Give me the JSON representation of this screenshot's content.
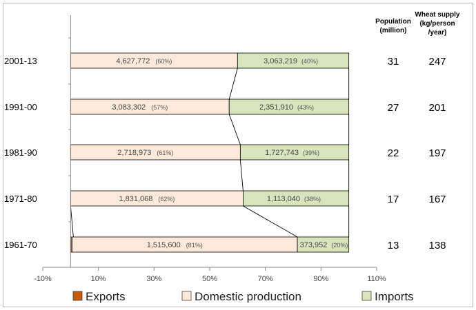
{
  "chart_data": {
    "type": "bar",
    "orientation": "horizontal",
    "stacked": true,
    "categories": [
      "2001-13",
      "1991-00",
      "1981-90",
      "1971-80",
      "1961-70"
    ],
    "series": [
      {
        "name": "Exports",
        "color": "#c55a11",
        "values_percent": [
          0,
          0,
          0,
          0,
          0.5
        ]
      },
      {
        "name": "Domestic production",
        "color": "#fde9d9",
        "values": [
          "4,627,772",
          "3,083,302",
          "2,718,973",
          "1,831,068",
          "1,515,600"
        ],
        "percent_labels": [
          "(60%)",
          "(57%)",
          "(61%)",
          "(62%)",
          "(81%)"
        ],
        "values_percent": [
          60,
          57,
          61,
          62,
          81
        ]
      },
      {
        "name": "Imports",
        "color": "#d8e4bc",
        "values": [
          "3,063,219",
          "2,351,910",
          "1,727,743",
          "1,113,040",
          "373,952"
        ],
        "percent_labels": [
          "(40%)",
          "(43%)",
          "(39%)",
          "(38%)",
          "(20%)"
        ],
        "values_percent": [
          40,
          43,
          39,
          38,
          20
        ]
      }
    ],
    "xlim": [
      -10,
      110
    ],
    "x_ticks": [
      "-10%",
      "10%",
      "30%",
      "50%",
      "70%",
      "90%",
      "110%"
    ],
    "x_tick_values": [
      -10,
      10,
      30,
      50,
      70,
      90,
      110
    ],
    "legend_position": "bottom",
    "side_table": {
      "population_header": [
        "Population",
        "(million)"
      ],
      "population": [
        "31",
        "27",
        "22",
        "17",
        "13"
      ],
      "supply_header": [
        "Wheat supply",
        "(kg/person",
        "/year)"
      ],
      "supply": [
        "247",
        "201",
        "197",
        "167",
        "138"
      ]
    }
  }
}
